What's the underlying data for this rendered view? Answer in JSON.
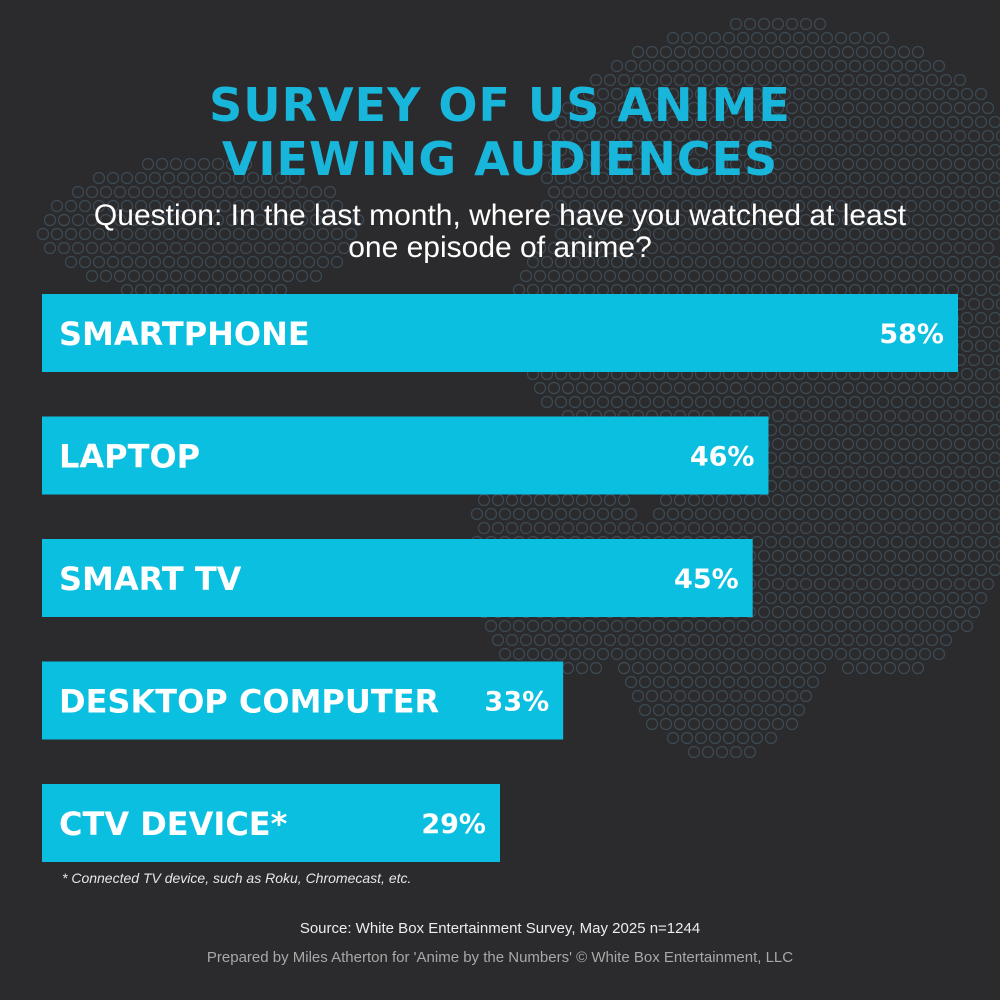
{
  "title": {
    "line1": "SURVEY OF US ANIME",
    "line2": "VIEWING AUDIENCES"
  },
  "question": "Question: In the last month, where have you watched at least one episode of anime?",
  "chart_data": {
    "type": "bar",
    "orientation": "horizontal",
    "title": "SURVEY OF US ANIME VIEWING AUDIENCES",
    "categories": [
      "SMARTPHONE",
      "LAPTOP",
      "SMART TV",
      "DESKTOP COMPUTER",
      "CTV DEVICE*"
    ],
    "values": [
      58,
      46,
      45,
      33,
      29
    ],
    "value_labels": [
      "58%",
      "46%",
      "45%",
      "33%",
      "29%"
    ],
    "unit": "%",
    "xlim": [
      0,
      58
    ],
    "grid": false,
    "bar_color": "#0bbfe0"
  },
  "footnote": "* Connected TV device, such as Roku, Chromecast, etc.",
  "source": "Source: White Box Entertainment Survey, May 2025 n=1244",
  "credit": "Prepared by Miles Atherton for 'Anime by the Numbers' © White Box Entertainment, LLC",
  "colors": {
    "background": "#2b2b2d",
    "accent": "#19b6dc",
    "bar": "#0bbfe0"
  }
}
